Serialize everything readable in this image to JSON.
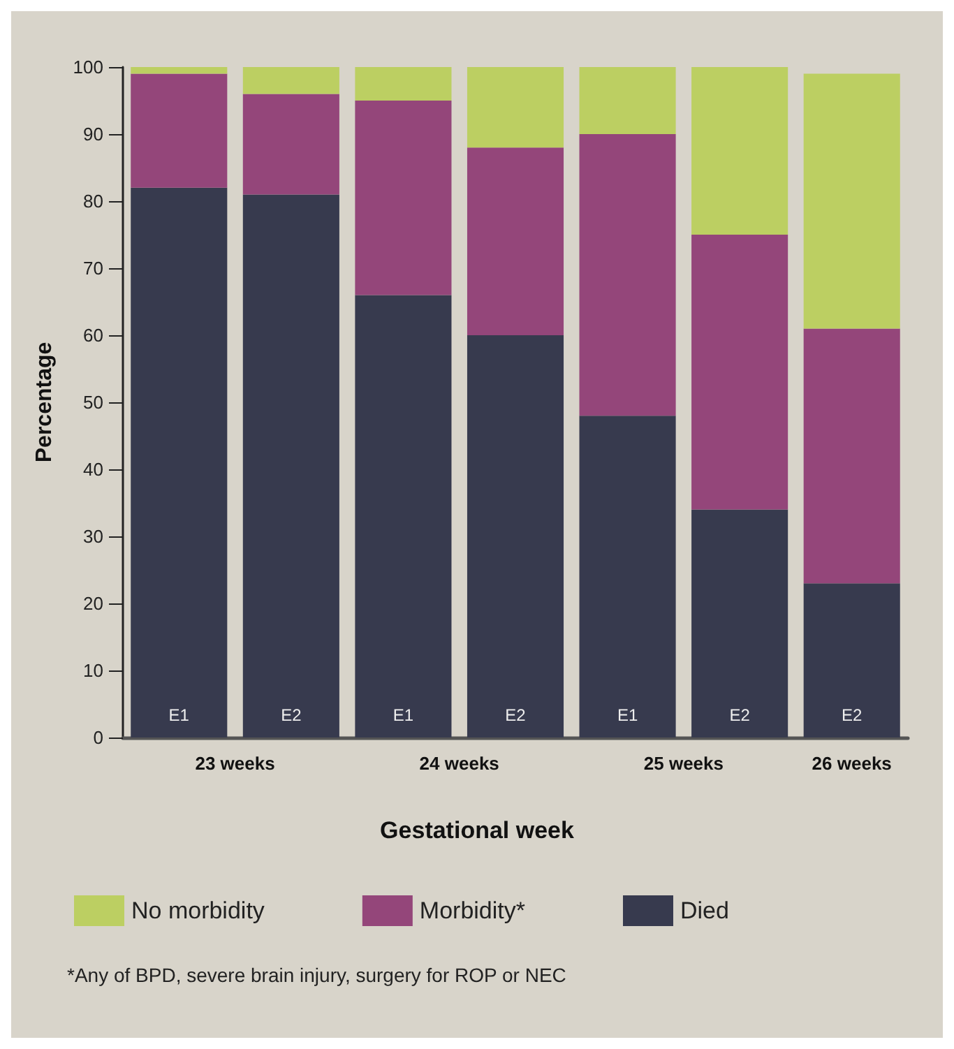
{
  "chart_data": {
    "type": "bar",
    "stacked": true,
    "xlabel": "Gestational week",
    "ylabel": "Percentage",
    "categories": [
      "E1",
      "E2",
      "E1",
      "E2",
      "E1",
      "E2",
      "E2"
    ],
    "series": [
      {
        "name": "Died",
        "color": "#373a4e",
        "values": [
          82,
          81,
          66,
          60,
          48,
          34,
          23
        ]
      },
      {
        "name": "Morbidity*",
        "color": "#94467a",
        "values": [
          17,
          15,
          29,
          28,
          42,
          41,
          38
        ]
      },
      {
        "name": "No morbidity",
        "color": "#bccf62",
        "values": [
          1,
          4,
          5,
          12,
          10,
          25,
          38
        ]
      }
    ],
    "ylim": [
      0,
      100
    ],
    "yticks": [
      0,
      10,
      20,
      30,
      40,
      50,
      60,
      70,
      80,
      90,
      100
    ],
    "grid": false,
    "legend": "bottom",
    "annotations": [
      "23 weeks",
      "24 weeks",
      "25 weeks",
      "26 weeks",
      "*Any of BPD, severe brain injury, surgery for ROP or NEC"
    ]
  }
}
